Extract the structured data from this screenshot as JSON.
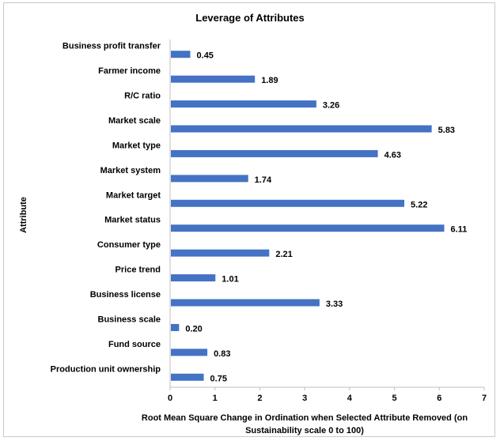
{
  "chart_data": {
    "type": "bar",
    "orientation": "horizontal",
    "title": "Leverage of Attributes",
    "xlabel_lines": [
      "Root Mean Square Change in Ordination when Selected Attribute Removed (on",
      "Sustainability scale 0 to 100)"
    ],
    "ylabel": "Attribute",
    "categories": [
      "Business profit transfer",
      "Farmer income",
      "R/C ratio",
      "Market scale",
      "Market type",
      "Market system",
      "Market target",
      "Market status",
      "Consumer type",
      "Price trend",
      "Business license",
      "Business scale",
      "Fund source",
      "Production unit ownership"
    ],
    "values": [
      0.45,
      1.89,
      3.26,
      5.83,
      4.63,
      1.74,
      5.22,
      6.11,
      2.21,
      1.01,
      3.33,
      0.2,
      0.83,
      0.75
    ],
    "value_labels": [
      "0.45",
      "1.89",
      "3.26",
      "5.83",
      "4.63",
      "1.74",
      "5.22",
      "6.11",
      "2.21",
      "1.01",
      "3.33",
      "0.20",
      "0.83",
      "0.75"
    ],
    "xlim": [
      0,
      7
    ],
    "xticks": [
      "0",
      "1",
      "2",
      "3",
      "4",
      "5",
      "6",
      "7"
    ],
    "bar_color": "#4472c4",
    "grid": false,
    "legend": "none"
  }
}
